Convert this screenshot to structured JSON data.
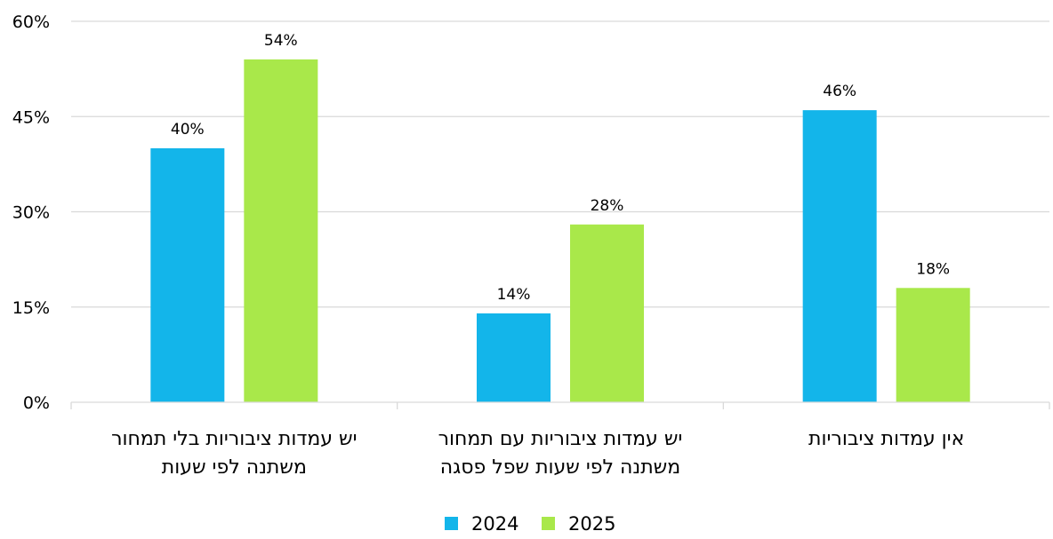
{
  "chart_data": {
    "type": "bar",
    "categories": [
      [
        "יש עמדות ציבוריות בלי תמחור",
        "משתנה לפי שעות"
      ],
      [
        "יש עמדות ציבוריות עם תמחור",
        "משתנה לפי שעות שפל פסגה"
      ],
      [
        "אין עמדות ציבוריות"
      ]
    ],
    "series": [
      {
        "name": "2024",
        "values": [
          40,
          14,
          46
        ],
        "labels": [
          "40%",
          "14%",
          "46%"
        ],
        "color": "#13b5ea"
      },
      {
        "name": "2025",
        "values": [
          54,
          28,
          18
        ],
        "labels": [
          "54%",
          "28%",
          "18%"
        ],
        "color": "#a9e84a"
      }
    ],
    "ylim": [
      0,
      60
    ],
    "yticks": [
      0,
      15,
      30,
      45,
      60
    ],
    "ytick_labels": [
      "0%",
      "15%",
      "30%",
      "45%",
      "60%"
    ],
    "grid": true,
    "legend_position": "bottom-center",
    "title": "",
    "xlabel": "",
    "ylabel": ""
  }
}
